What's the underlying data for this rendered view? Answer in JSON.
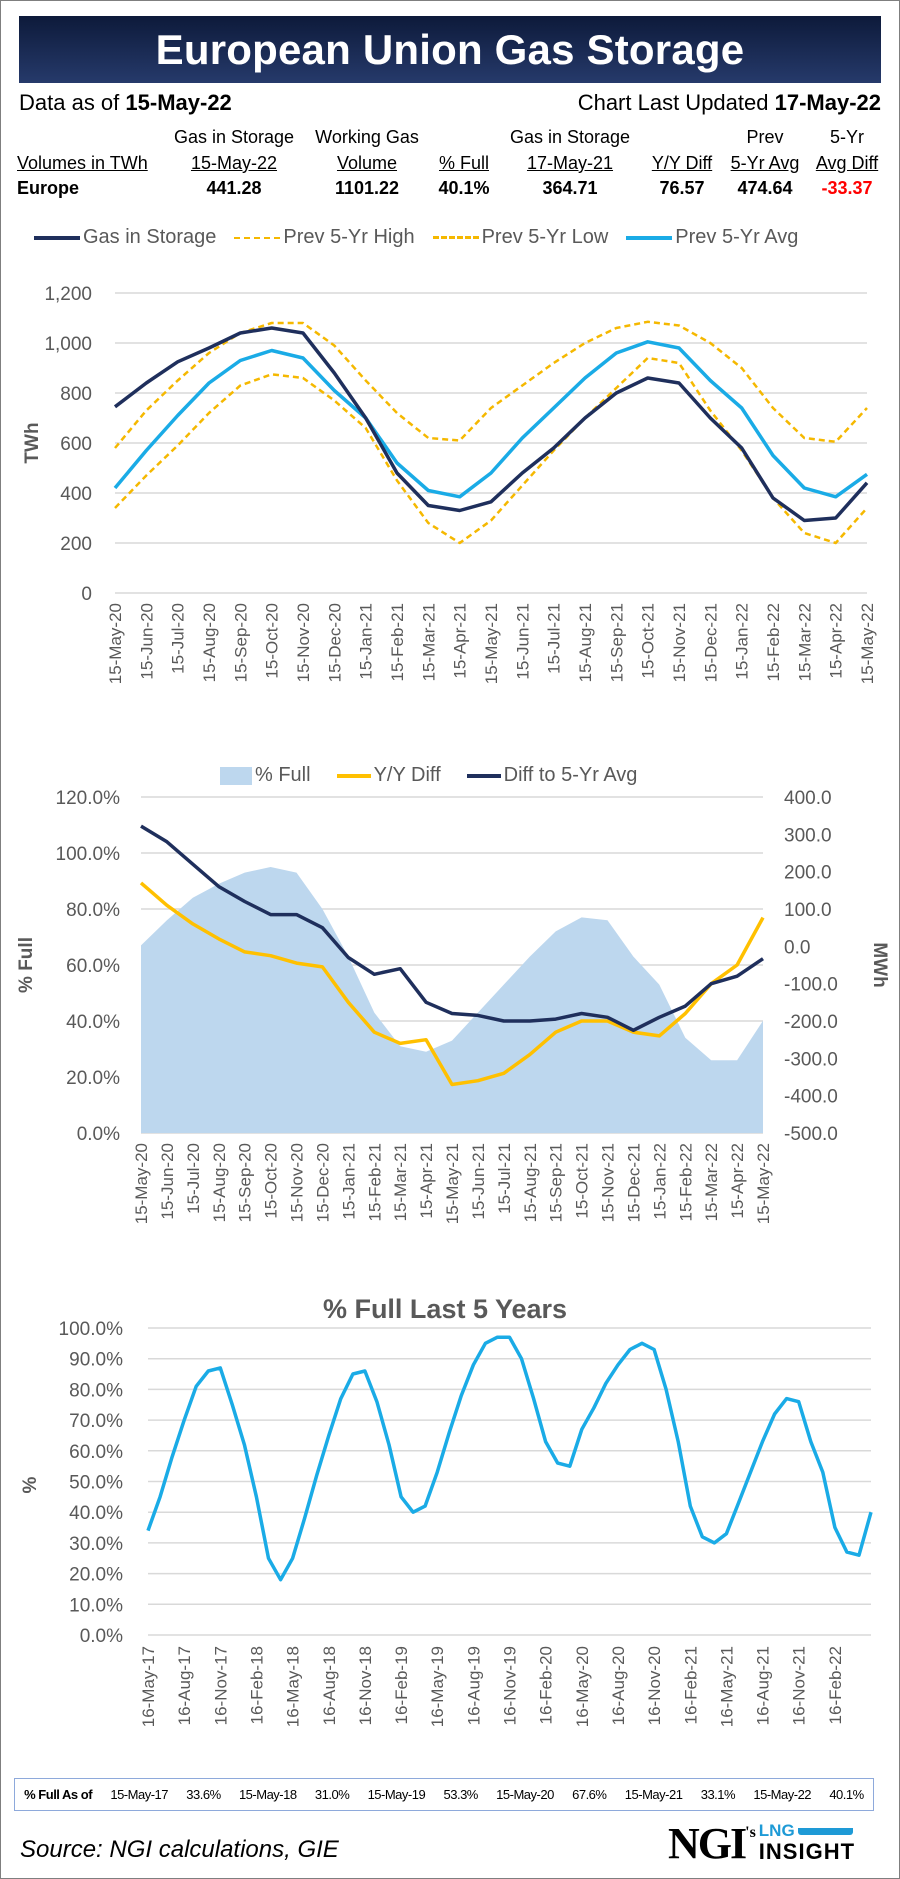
{
  "header": {
    "title": "European Union Gas Storage",
    "data_as_of_label": "Data as of",
    "data_as_of": "15-May-22",
    "updated_label": "Chart Last Updated",
    "updated": "17-May-22"
  },
  "summary_table": {
    "row_label_header": "Volumes in TWh",
    "columns": [
      {
        "top": "Gas in Storage",
        "bottom": "15-May-22",
        "value": "441.28"
      },
      {
        "top": "Working Gas",
        "bottom": "Volume",
        "value": "1101.22"
      },
      {
        "top": "",
        "bottom": "% Full",
        "value": "40.1%"
      },
      {
        "top": "Gas in Storage",
        "bottom": "17-May-21",
        "value": "364.71"
      },
      {
        "top": "",
        "bottom": "Y/Y Diff",
        "value": "76.57"
      },
      {
        "top": "Prev",
        "bottom": "5-Yr Avg",
        "value": "474.64"
      },
      {
        "top": "5-Yr",
        "bottom": "Avg Diff",
        "value": "-33.37"
      }
    ],
    "row_label": "Europe",
    "negative_color": "#ff0000"
  },
  "chart_data": [
    {
      "type": "line",
      "title": "",
      "ylabel": "TWh",
      "ylim": [
        0,
        1200
      ],
      "yticks": [
        "0",
        "200",
        "400",
        "600",
        "800",
        "1,000",
        "1,200"
      ],
      "grid": true,
      "legend_position": "top",
      "x": [
        "15-May-20",
        "15-Jun-20",
        "15-Jul-20",
        "15-Aug-20",
        "15-Sep-20",
        "15-Oct-20",
        "15-Nov-20",
        "15-Dec-20",
        "15-Jan-21",
        "15-Feb-21",
        "15-Mar-21",
        "15-Apr-21",
        "15-May-21",
        "15-Jun-21",
        "15-Jul-21",
        "15-Aug-21",
        "15-Sep-21",
        "15-Oct-21",
        "15-Nov-21",
        "15-Dec-21",
        "15-Jan-22",
        "15-Feb-22",
        "15-Mar-22",
        "15-Apr-22",
        "15-May-22"
      ],
      "series": [
        {
          "name": "Gas in Storage",
          "color": "#1f2f5c",
          "style": "solid",
          "values": [
            745,
            840,
            925,
            980,
            1040,
            1060,
            1040,
            880,
            700,
            480,
            350,
            330,
            365,
            480,
            580,
            700,
            800,
            860,
            840,
            700,
            580,
            380,
            290,
            300,
            441
          ]
        },
        {
          "name": "Prev 5-Yr High",
          "color": "#f5b800",
          "style": "dashed",
          "values": [
            580,
            730,
            850,
            960,
            1040,
            1080,
            1080,
            990,
            850,
            720,
            620,
            610,
            740,
            830,
            920,
            1000,
            1060,
            1085,
            1070,
            1000,
            900,
            740,
            620,
            605,
            740
          ]
        },
        {
          "name": "Prev 5-Yr Low",
          "color": "#f5b800",
          "style": "dashed",
          "values": [
            340,
            470,
            590,
            720,
            830,
            875,
            860,
            770,
            660,
            450,
            280,
            200,
            290,
            430,
            570,
            700,
            820,
            940,
            920,
            730,
            570,
            380,
            240,
            200,
            340
          ]
        },
        {
          "name": "Prev 5-Yr Avg",
          "color": "#1aabe6",
          "style": "solid",
          "values": [
            420,
            570,
            710,
            840,
            930,
            970,
            940,
            810,
            700,
            520,
            410,
            385,
            480,
            620,
            740,
            860,
            960,
            1005,
            980,
            850,
            740,
            550,
            420,
            385,
            475
          ]
        }
      ]
    },
    {
      "type": "area+line",
      "title": "",
      "ylabel": "% Full",
      "ylabel_right": "MWh",
      "ylim": [
        0,
        120
      ],
      "ylim_right": [
        -500,
        400
      ],
      "yticks": [
        "0.0%",
        "20.0%",
        "40.0%",
        "60.0%",
        "80.0%",
        "100.0%",
        "120.0%"
      ],
      "yticks_right": [
        "-500.0",
        "-400.0",
        "-300.0",
        "-200.0",
        "-100.0",
        "0.0",
        "100.0",
        "200.0",
        "300.0",
        "400.0"
      ],
      "right_negative_color": "#ff0000",
      "grid": true,
      "legend_position": "top",
      "x": [
        "15-May-20",
        "15-Jun-20",
        "15-Jul-20",
        "15-Aug-20",
        "15-Sep-20",
        "15-Oct-20",
        "15-Nov-20",
        "15-Dec-20",
        "15-Jan-21",
        "15-Feb-21",
        "15-Mar-21",
        "15-Apr-21",
        "15-May-21",
        "15-Jun-21",
        "15-Jul-21",
        "15-Aug-21",
        "15-Sep-21",
        "15-Oct-21",
        "15-Nov-21",
        "15-Dec-21",
        "15-Jan-22",
        "15-Feb-22",
        "15-Mar-22",
        "15-Apr-22",
        "15-May-22"
      ],
      "series": [
        {
          "name": "% Full",
          "axis": "left",
          "kind": "area",
          "color": "#bdd7ee",
          "values": [
            67,
            76,
            84,
            89,
            93,
            95,
            93,
            80,
            63,
            43,
            31,
            29,
            33,
            43,
            53,
            63,
            72,
            77,
            76,
            63,
            53,
            34,
            26,
            26,
            40.1
          ]
        },
        {
          "name": "Y/Y Diff",
          "axis": "right",
          "kind": "line",
          "color": "#ffc000",
          "values": [
            170,
            110,
            60,
            20,
            -15,
            -25,
            -45,
            -55,
            -150,
            -230,
            -260,
            -250,
            -370,
            -360,
            -340,
            -290,
            -230,
            -200,
            -200,
            -230,
            -240,
            -180,
            -100,
            -50,
            77
          ]
        },
        {
          "name": "Diff to 5-Yr Avg",
          "axis": "right",
          "kind": "line",
          "color": "#1f2f5c",
          "values": [
            322,
            280,
            220,
            160,
            120,
            85,
            85,
            50,
            -30,
            -75,
            -60,
            -150,
            -180,
            -185,
            -200,
            -200,
            -195,
            -180,
            -190,
            -225,
            -190,
            -160,
            -100,
            -80,
            -33
          ]
        }
      ]
    },
    {
      "type": "line",
      "title": "% Full Last 5 Years",
      "ylabel": "%",
      "ylim": [
        0,
        100
      ],
      "yticks": [
        "0.0%",
        "10.0%",
        "20.0%",
        "30.0%",
        "40.0%",
        "50.0%",
        "60.0%",
        "70.0%",
        "80.0%",
        "90.0%",
        "100.0%"
      ],
      "grid": true,
      "x_start": "16-May-17",
      "x_end": "16-May-22",
      "xtick_labels": [
        "16-May-17",
        "16-Aug-17",
        "16-Nov-17",
        "16-Feb-18",
        "16-May-18",
        "16-Aug-18",
        "16-Nov-18",
        "16-Feb-19",
        "16-May-19",
        "16-Aug-19",
        "16-Nov-19",
        "16-Feb-20",
        "16-May-20",
        "16-Aug-20",
        "16-Nov-20",
        "16-Feb-21",
        "16-May-21",
        "16-Aug-21",
        "16-Nov-21",
        "16-Feb-22"
      ],
      "series": [
        {
          "color": "#1aabe6",
          "values": [
            34,
            45,
            58,
            70,
            81,
            86,
            87,
            75,
            62,
            45,
            25,
            18,
            25,
            38,
            52,
            65,
            77,
            85,
            86,
            76,
            62,
            45,
            40,
            42,
            53,
            66,
            78,
            88,
            95,
            97,
            97,
            90,
            77,
            63,
            56,
            55,
            67,
            74,
            82,
            88,
            93,
            95,
            93,
            80,
            63,
            42,
            32,
            30,
            33,
            43,
            53,
            63,
            72,
            77,
            76,
            63,
            53,
            35,
            27,
            26,
            40
          ]
        }
      ]
    }
  ],
  "footer_table": {
    "label": "% Full As of",
    "entries": [
      {
        "date": "15-May-17",
        "value": "33.6%"
      },
      {
        "date": "15-May-18",
        "value": "31.0%"
      },
      {
        "date": "15-May-19",
        "value": "53.3%"
      },
      {
        "date": "15-May-20",
        "value": "67.6%"
      },
      {
        "date": "15-May-21",
        "value": "33.1%"
      },
      {
        "date": "15-May-22",
        "value": "40.1%"
      }
    ]
  },
  "source": "Source: NGI calculations, GIE",
  "logo": {
    "main": "NGI",
    "possessive": "'s",
    "line1": "LNG",
    "line2": "INSIGHT"
  }
}
